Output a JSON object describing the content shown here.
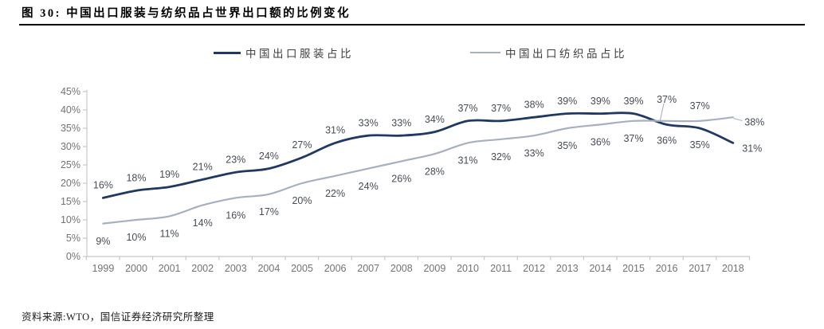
{
  "page": {
    "title": "图 30: 中国出口服装与纺织品占世界出口额的比例变化",
    "source": "资料来源:WTO，国信证券经济研究所整理"
  },
  "chart_data": {
    "type": "line",
    "title": "中国出口服装与纺织品占世界出口额的比例变化",
    "x": [
      "1999",
      "2000",
      "2001",
      "2002",
      "2003",
      "2004",
      "2005",
      "2006",
      "2007",
      "2008",
      "2009",
      "2010",
      "2011",
      "2012",
      "2013",
      "2014",
      "2015",
      "2016",
      "2017",
      "2018"
    ],
    "series": [
      {
        "name": "中国出口服装占比",
        "color": "#1f3864",
        "values": [
          16,
          18,
          19,
          21,
          23,
          24,
          27,
          31,
          33,
          33,
          34,
          37,
          37,
          38,
          39,
          39,
          39,
          36,
          35,
          31
        ],
        "point_labels": [
          "16%",
          "18%",
          "19%",
          "21%",
          "23%",
          "24%",
          "27%",
          "31%",
          "33%",
          "33%",
          "34%",
          "37%",
          "37%",
          "38%",
          "39%",
          "39%",
          "39%",
          "36%",
          "35%",
          "31%"
        ]
      },
      {
        "name": "中国出口纺织品占比",
        "color": "#a6b0c0",
        "values": [
          9,
          10,
          11,
          14,
          16,
          17,
          20,
          22,
          24,
          26,
          28,
          31,
          32,
          33,
          35,
          36,
          37,
          37,
          37,
          38
        ],
        "point_labels": [
          "9%",
          "10%",
          "11%",
          "14%",
          "16%",
          "17%",
          "20%",
          "22%",
          "24%",
          "26%",
          "28%",
          "31%",
          "32%",
          "33%",
          "35%",
          "36%",
          "37%",
          "37%",
          "37%",
          "38%"
        ]
      }
    ],
    "y_ticks": [
      "0%",
      "5%",
      "10%",
      "15%",
      "20%",
      "25%",
      "30%",
      "35%",
      "40%",
      "45%"
    ],
    "ylim": [
      0,
      45
    ],
    "y_tick_step": 5,
    "grid": false,
    "legend_position": "top-center",
    "axis_color": "#c8c8c8"
  }
}
